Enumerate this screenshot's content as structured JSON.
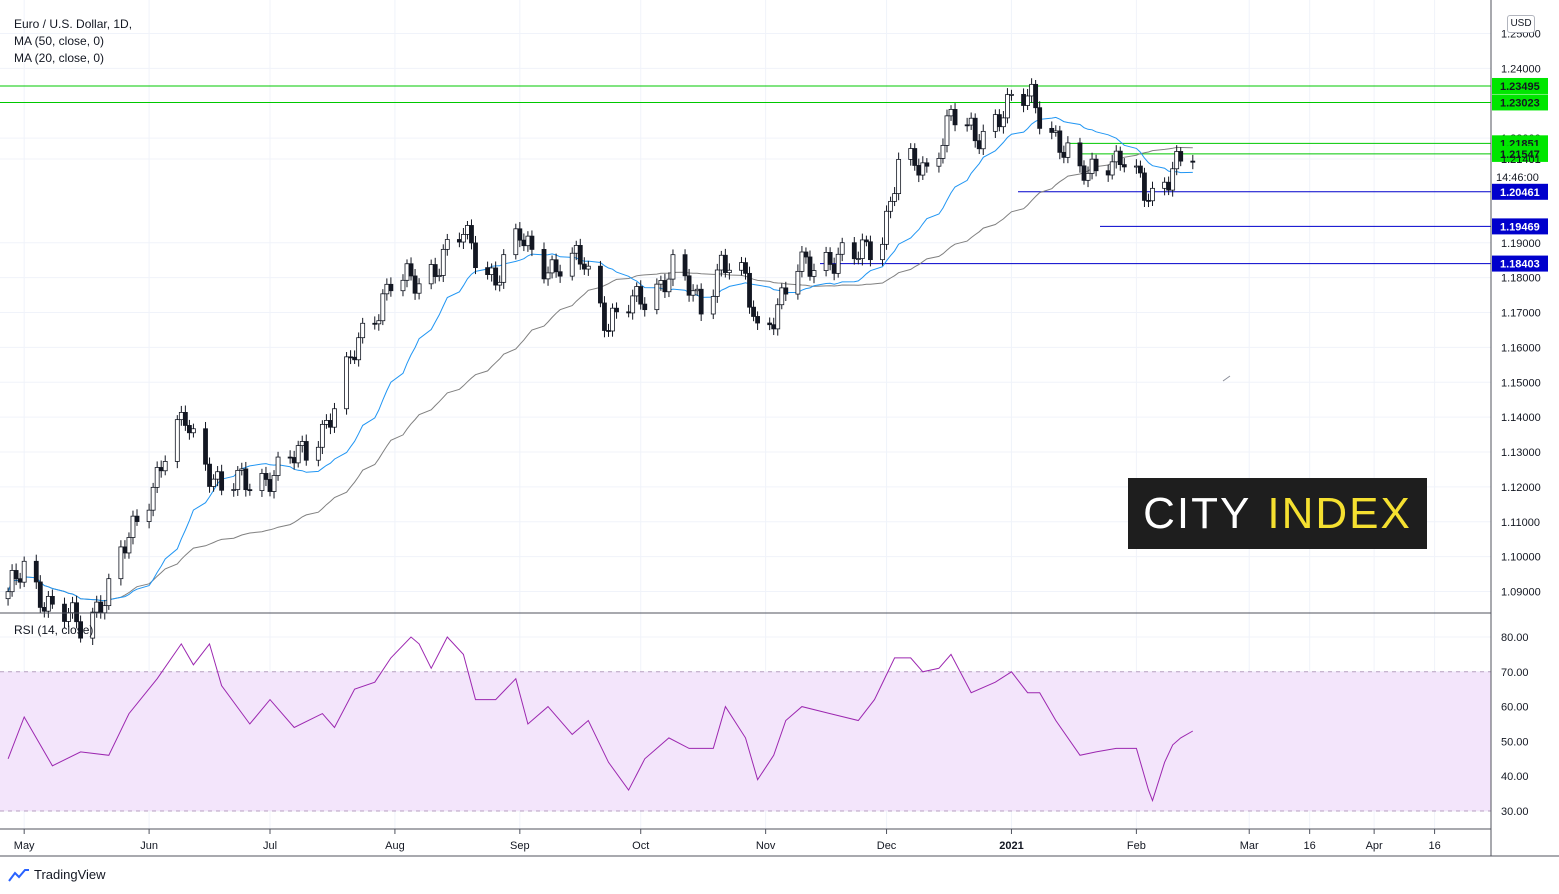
{
  "header": {
    "symbol_line": "Euro / U.S. Dollar, 1D,",
    "ma50_line": "MA (50, close, 0)",
    "ma20_line": "MA (20, close, 0)",
    "currency_badge": "USD"
  },
  "rsi_legend": "RSI (14, close)",
  "brand": {
    "logo_word1": "CITY",
    "logo_word2": "INDEX",
    "logo_word1_color": "#ffffff",
    "logo_word2_color": "#f5e030",
    "logo_bg": "#1e1e1e",
    "platform_label": "TradingView",
    "platform_icon": "tradingview-logo-icon"
  },
  "colors": {
    "up_candle": "#ffffff",
    "down_candle": "#131722",
    "ma20": "#2196f3",
    "ma50": "#808080",
    "rsi_line": "#9c27b0",
    "rsi_band": "#f3e5fb",
    "resistance_line": "#00c800",
    "support_line": "#0000cc",
    "green_tag": "#00e600",
    "blue_tag": "#0000cc"
  },
  "chart_data": [
    {
      "type": "candlestick",
      "title": "Euro / U.S. Dollar, 1D",
      "x_tick_labels": [
        "May",
        "Jun",
        "Jul",
        "Aug",
        "Sep",
        "Oct",
        "Nov",
        "Dec",
        "2021",
        "Feb",
        "Mar",
        "16",
        "Apr",
        "16"
      ],
      "x_ticks": [
        "2020-05-01",
        "2020-06-01",
        "2020-07-01",
        "2020-08-01",
        "2020-09-01",
        "2020-10-01",
        "2020-11-01",
        "2020-12-01",
        "2021-01-01",
        "2021-02-01",
        "2021-03-01",
        "2021-03-16",
        "2021-04-01",
        "2021-04-16"
      ],
      "y_tick_labels": [
        "1.25000",
        "1.24000",
        "1.22000",
        "1.21401",
        "1.19000",
        "1.18000",
        "1.17000",
        "1.16000",
        "1.15000",
        "1.14000",
        "1.13000",
        "1.12000",
        "1.11000",
        "1.10000",
        "1.09000"
      ],
      "ylim": [
        1.087,
        1.251
      ],
      "x_range": [
        "2020-04-25",
        "2021-04-30"
      ],
      "last_price": 1.21401,
      "countdown_label": "14:46:00",
      "resistance_levels": [
        {
          "value": 1.23495,
          "label": "1.23495"
        },
        {
          "value": 1.23023,
          "label": "1.23023"
        },
        {
          "value": 1.21851,
          "label": "1.21851"
        },
        {
          "value": 1.21547,
          "label": "1.21547"
        }
      ],
      "support_levels": [
        {
          "value": 1.20461,
          "label": "1.20461"
        },
        {
          "value": 1.19469,
          "label": "1.19469"
        },
        {
          "value": 1.18403,
          "label": "1.18403"
        }
      ],
      "anchors": [
        [
          "2020-04-27",
          1.088
        ],
        [
          "2020-05-01",
          1.098
        ],
        [
          "2020-05-08",
          1.084
        ],
        [
          "2020-05-15",
          1.081
        ],
        [
          "2020-05-22",
          1.09
        ],
        [
          "2020-05-29",
          1.111
        ],
        [
          "2020-06-05",
          1.129
        ],
        [
          "2020-06-10",
          1.139
        ],
        [
          "2020-06-19",
          1.119
        ],
        [
          "2020-06-26",
          1.122
        ],
        [
          "2020-07-03",
          1.124
        ],
        [
          "2020-07-10",
          1.131
        ],
        [
          "2020-07-17",
          1.142
        ],
        [
          "2020-07-24",
          1.165
        ],
        [
          "2020-07-31",
          1.178
        ],
        [
          "2020-08-07",
          1.179
        ],
        [
          "2020-08-18",
          1.192
        ],
        [
          "2020-08-26",
          1.18
        ],
        [
          "2020-09-01",
          1.191
        ],
        [
          "2020-09-10",
          1.182
        ],
        [
          "2020-09-17",
          1.185
        ],
        [
          "2020-09-23",
          1.167
        ],
        [
          "2020-09-29",
          1.172
        ],
        [
          "2020-10-09",
          1.182
        ],
        [
          "2020-10-16",
          1.172
        ],
        [
          "2020-10-21",
          1.185
        ],
        [
          "2020-10-27",
          1.178
        ],
        [
          "2020-10-30",
          1.165
        ],
        [
          "2020-11-04",
          1.172
        ],
        [
          "2020-11-09",
          1.182
        ],
        [
          "2020-11-16",
          1.186
        ],
        [
          "2020-11-23",
          1.185
        ],
        [
          "2020-11-30",
          1.193
        ],
        [
          "2020-12-04",
          1.212
        ],
        [
          "2020-12-11",
          1.211
        ],
        [
          "2020-12-17",
          1.227
        ],
        [
          "2020-12-23",
          1.219
        ],
        [
          "2020-12-30",
          1.229
        ],
        [
          "2021-01-06",
          1.231
        ],
        [
          "2021-01-12",
          1.221
        ],
        [
          "2021-01-18",
          1.208
        ],
        [
          "2021-01-25",
          1.215
        ],
        [
          "2021-01-29",
          1.213
        ],
        [
          "2021-02-03",
          1.204
        ],
        [
          "2021-02-05",
          1.204
        ],
        [
          "2021-02-10",
          1.212
        ],
        [
          "2021-02-15",
          1.214
        ]
      ],
      "moving_averages": [
        {
          "name": "MA (20, close, 0)",
          "period": 20,
          "color": "#2196f3"
        },
        {
          "name": "MA (50, close, 0)",
          "period": 50,
          "color": "#808080"
        }
      ]
    },
    {
      "type": "line",
      "title": "RSI (14, close)",
      "y_tick_labels": [
        "80.00",
        "70.00",
        "60.00",
        "50.00",
        "40.00",
        "30.00"
      ],
      "ylim": [
        28,
        82
      ],
      "band": [
        30,
        70
      ],
      "x_range": [
        "2020-04-25",
        "2021-04-30"
      ],
      "series": [
        {
          "values": [
            [
              "2020-04-27",
              45
            ],
            [
              "2020-05-01",
              57
            ],
            [
              "2020-05-08",
              43
            ],
            [
              "2020-05-15",
              47
            ],
            [
              "2020-05-22",
              46
            ],
            [
              "2020-05-27",
              58
            ],
            [
              "2020-06-03",
              68
            ],
            [
              "2020-06-09",
              78
            ],
            [
              "2020-06-12",
              72
            ],
            [
              "2020-06-16",
              78
            ],
            [
              "2020-06-19",
              66
            ],
            [
              "2020-06-26",
              55
            ],
            [
              "2020-07-01",
              62
            ],
            [
              "2020-07-07",
              54
            ],
            [
              "2020-07-14",
              58
            ],
            [
              "2020-07-17",
              54
            ],
            [
              "2020-07-22",
              65
            ],
            [
              "2020-07-27",
              67
            ],
            [
              "2020-07-31",
              74
            ],
            [
              "2020-08-05",
              80
            ],
            [
              "2020-08-07",
              78
            ],
            [
              "2020-08-10",
              71
            ],
            [
              "2020-08-14",
              80
            ],
            [
              "2020-08-18",
              75
            ],
            [
              "2020-08-21",
              62
            ],
            [
              "2020-08-26",
              62
            ],
            [
              "2020-08-31",
              68
            ],
            [
              "2020-09-03",
              55
            ],
            [
              "2020-09-08",
              60
            ],
            [
              "2020-09-14",
              52
            ],
            [
              "2020-09-18",
              56
            ],
            [
              "2020-09-23",
              44
            ],
            [
              "2020-09-28",
              36
            ],
            [
              "2020-10-02",
              45
            ],
            [
              "2020-10-08",
              51
            ],
            [
              "2020-10-13",
              48
            ],
            [
              "2020-10-19",
              48
            ],
            [
              "2020-10-22",
              60
            ],
            [
              "2020-10-27",
              51
            ],
            [
              "2020-10-30",
              39
            ],
            [
              "2020-11-03",
              46
            ],
            [
              "2020-11-06",
              56
            ],
            [
              "2020-11-10",
              60
            ],
            [
              "2020-11-17",
              58
            ],
            [
              "2020-11-24",
              56
            ],
            [
              "2020-11-28",
              62
            ],
            [
              "2020-12-03",
              74
            ],
            [
              "2020-12-07",
              74
            ],
            [
              "2020-12-10",
              70
            ],
            [
              "2020-12-14",
              71
            ],
            [
              "2020-12-17",
              75
            ],
            [
              "2020-12-22",
              64
            ],
            [
              "2020-12-28",
              67
            ],
            [
              "2021-01-01",
              70
            ],
            [
              "2021-01-05",
              64
            ],
            [
              "2021-01-08",
              64
            ],
            [
              "2021-01-12",
              56
            ],
            [
              "2021-01-18",
              46
            ],
            [
              "2021-01-22",
              47
            ],
            [
              "2021-01-27",
              48
            ],
            [
              "2021-02-01",
              48
            ],
            [
              "2021-02-04",
              36
            ],
            [
              "2021-02-05",
              33
            ],
            [
              "2021-02-08",
              44
            ],
            [
              "2021-02-10",
              49
            ],
            [
              "2021-02-12",
              51
            ],
            [
              "2021-02-15",
              53
            ]
          ]
        }
      ]
    }
  ]
}
